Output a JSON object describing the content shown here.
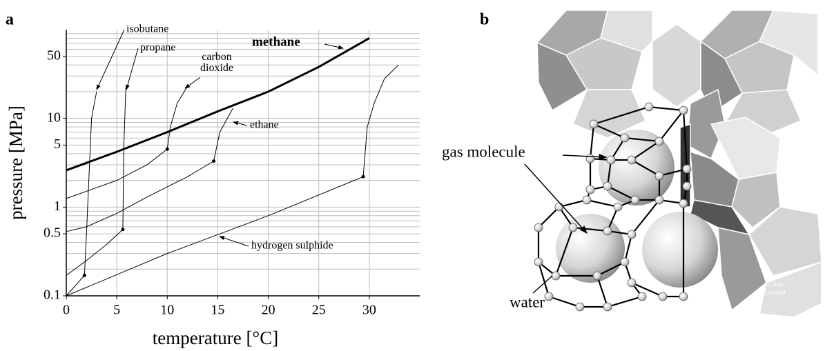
{
  "chart_data": {
    "type": "line",
    "panel_label": "a",
    "xlabel": "temperature [°C]",
    "ylabel": "pressure [MPa]",
    "xlim": [
      0,
      35
    ],
    "xticks": [
      0,
      5,
      10,
      15,
      20,
      25,
      30
    ],
    "ylim": [
      0.1,
      100
    ],
    "yscale": "log",
    "yticks": [
      0.1,
      0.5,
      1,
      5,
      10,
      50
    ],
    "minor_yticks": [
      0.2,
      0.3,
      0.4,
      0.6,
      0.7,
      0.8,
      0.9,
      2,
      3,
      4,
      6,
      7,
      8,
      9,
      20,
      30,
      40,
      60,
      70,
      80,
      90
    ],
    "grid": true,
    "grid_color": "#bdbdbd",
    "series": [
      {
        "name": "methane",
        "color": "#000000",
        "line_width": 3,
        "bold_label": true,
        "x": [
          0,
          5,
          10,
          15,
          20,
          25,
          30
        ],
        "values": [
          2.6,
          4.2,
          7,
          12,
          20,
          38,
          80
        ]
      },
      {
        "name": "isobutane",
        "color": "#000000",
        "line_width": 1,
        "marker_index": 1,
        "x": [
          0,
          1.8,
          2,
          2.3,
          2.5,
          3
        ],
        "values": [
          0.1,
          0.17,
          0.5,
          3,
          10,
          20
        ]
      },
      {
        "name": "propane",
        "color": "#000000",
        "line_width": 1,
        "marker_index": 3,
        "x": [
          0,
          2,
          4,
          5.6,
          5.7,
          5.9
        ],
        "values": [
          0.17,
          0.25,
          0.38,
          0.56,
          5,
          22
        ]
      },
      {
        "name": "carbon dioxide",
        "color": "#000000",
        "line_width": 1,
        "marker_index": 3,
        "x": [
          0,
          5,
          8,
          10,
          10.3,
          11,
          12
        ],
        "values": [
          1.25,
          2,
          3,
          4.5,
          8,
          15,
          23
        ]
      },
      {
        "name": "ethane",
        "color": "#000000",
        "line_width": 1,
        "marker_index": 5,
        "x": [
          0,
          2,
          5,
          8,
          12,
          14.6,
          15.2,
          16.5
        ],
        "values": [
          0.53,
          0.6,
          0.85,
          1.3,
          2.2,
          3.3,
          7,
          13
        ]
      },
      {
        "name": "hydrogen sulphide",
        "color": "#000000",
        "line_width": 1,
        "marker_index": 3,
        "x": [
          0,
          10,
          20,
          29.4,
          29.8,
          30.5,
          31.5,
          32.9
        ],
        "values": [
          0.1,
          0.3,
          0.8,
          2.2,
          8,
          15,
          28,
          40
        ]
      }
    ]
  },
  "illustration": {
    "panel_label": "b",
    "labels": {
      "gas_molecule": "gas molecule",
      "water": "water"
    },
    "credit": [
      "© Jens",
      "Greinert"
    ]
  }
}
